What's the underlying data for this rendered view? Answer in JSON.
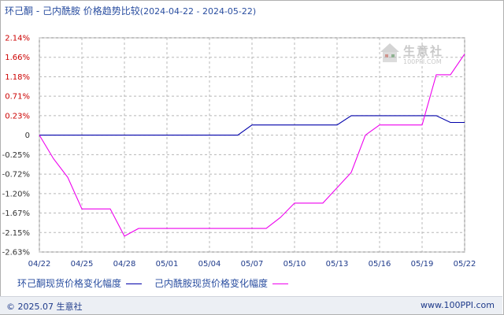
{
  "title": {
    "main": "环己酮 - 己内酰胺 价格趋势比较",
    "range": "(2024-04-22 - 2024-05-22)"
  },
  "watermark": {
    "brand": "生意社",
    "url": "100PPI.COM"
  },
  "footer": {
    "copyright": "© 2025.07 生意社",
    "site": "www.100PPI.com"
  },
  "colors": {
    "series1": "#0000aa",
    "series2": "#ee00ee",
    "positive_tick": "#cc0000",
    "axis_tick": "#1e3a8a"
  },
  "chart_data": {
    "type": "line",
    "title": "环己酮 - 己内酰胺 价格趋势比较",
    "xlabel": "",
    "ylabel": "",
    "ylim": [
      -2.63,
      2.14
    ],
    "grid": true,
    "legend_position": "bottom-left",
    "y_ticks": [
      "2.14%",
      "1.66%",
      "1.18%",
      "0.71%",
      "0.23%",
      "0",
      "-0.25%",
      "-0.72%",
      "-1.20%",
      "-1.67%",
      "-2.15%",
      "-2.63%"
    ],
    "y_tick_values": [
      2.14,
      1.66,
      1.18,
      0.71,
      0.23,
      0,
      -0.25,
      -0.72,
      -1.2,
      -1.67,
      -2.15,
      -2.63
    ],
    "x_ticks": [
      "04/22",
      "04/25",
      "04/28",
      "05/01",
      "05/04",
      "05/07",
      "05/10",
      "05/13",
      "05/16",
      "05/19",
      "05/22"
    ],
    "x_tick_positions": [
      0,
      3,
      6,
      9,
      12,
      15,
      18,
      21,
      24,
      27,
      30
    ],
    "series": [
      {
        "name": "环己酮现货价格变化幅度",
        "color": "#0000aa",
        "x": [
          0,
          14,
          15,
          21,
          22,
          28,
          29,
          30
        ],
        "values": [
          0,
          0,
          0.12,
          0.12,
          0.23,
          0.23,
          0.15,
          0.15
        ]
      },
      {
        "name": "己内酰胺现货价格变化幅度",
        "color": "#ee00ee",
        "x": [
          0,
          1,
          2,
          3,
          5,
          6,
          7,
          16,
          17,
          18,
          20,
          22,
          23,
          24,
          27,
          28,
          29,
          30
        ],
        "values": [
          0,
          -0.35,
          -0.8,
          -1.57,
          -1.57,
          -2.24,
          -2.05,
          -2.05,
          -1.78,
          -1.43,
          -1.43,
          -0.68,
          0,
          0.12,
          0.12,
          1.23,
          1.23,
          1.74
        ]
      }
    ]
  }
}
